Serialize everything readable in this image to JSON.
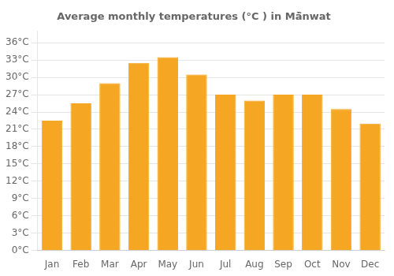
{
  "chart_data": {
    "type": "bar",
    "title": "Average monthly temperatures (°C ) in Mā̈nwat",
    "categories": [
      "Jan",
      "Feb",
      "Mar",
      "Apr",
      "May",
      "Jun",
      "Jul",
      "Aug",
      "Sep",
      "Oct",
      "Nov",
      "Dec"
    ],
    "values": [
      22.5,
      25.5,
      29.0,
      32.5,
      33.5,
      30.5,
      27.0,
      26.0,
      27.0,
      27.0,
      24.5,
      22.0
    ],
    "color": "#F5A623",
    "ylim": [
      0,
      38
    ],
    "yticks": [
      {
        "value": 0,
        "label": "0°C"
      },
      {
        "value": 3,
        "label": "3°C"
      },
      {
        "value": 6,
        "label": "6°C"
      },
      {
        "value": 9,
        "label": "9°C"
      },
      {
        "value": 12,
        "label": "12°C"
      },
      {
        "value": 15,
        "label": "15°C"
      },
      {
        "value": 18,
        "label": "18°C"
      },
      {
        "value": 21,
        "label": "21°C"
      },
      {
        "value": 24,
        "label": "24°C"
      },
      {
        "value": 27,
        "label": "27°C"
      },
      {
        "value": 30,
        "label": "30°C"
      },
      {
        "value": 33,
        "label": "33°C"
      },
      {
        "value": 36,
        "label": "36°C"
      }
    ],
    "grid": true
  }
}
